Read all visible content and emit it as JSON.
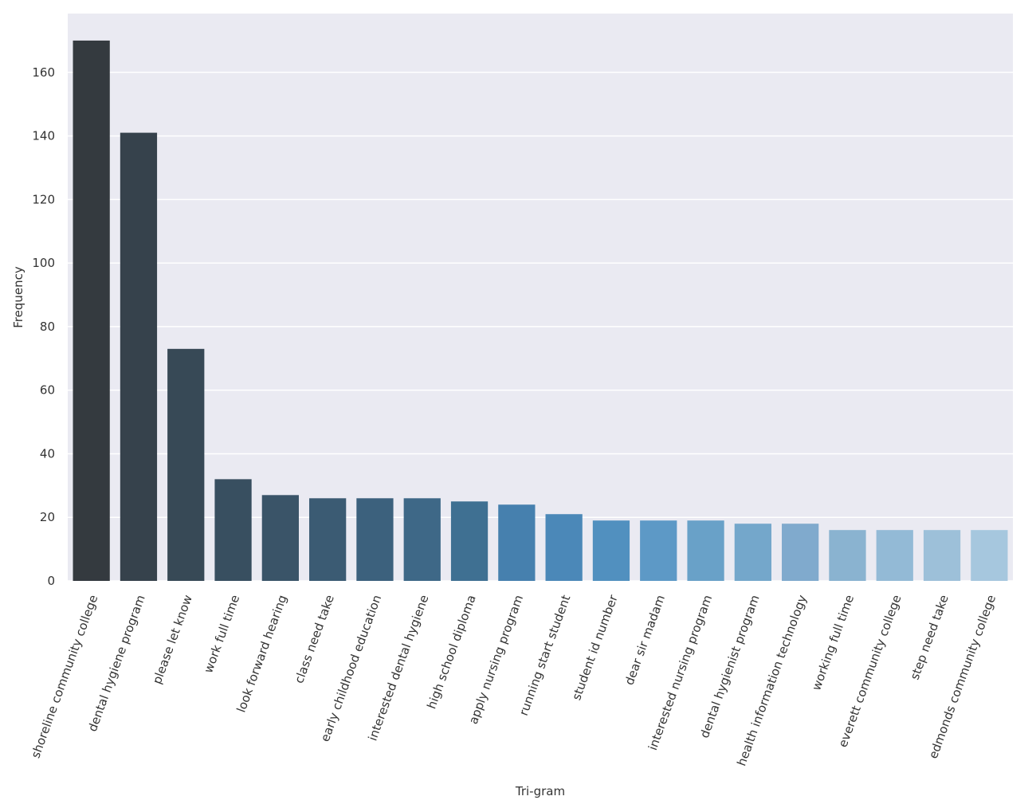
{
  "chart_data": {
    "type": "bar",
    "xlabel": "Tri-gram",
    "ylabel": "Frequency",
    "categories": [
      "shoreline community college",
      "dental hygiene program",
      "please let know",
      "work full time",
      "look forward hearing",
      "class need take",
      "early childhood education",
      "interested dental hygiene",
      "high school diploma",
      "apply nursing program",
      "running start student",
      "student id number",
      "dear sir madam",
      "interested nursing program",
      "dental hygienist program",
      "health information technology",
      "working full time",
      "everett community college",
      "step need take",
      "edmonds community college"
    ],
    "values": [
      170,
      141,
      73,
      32,
      27,
      26,
      26,
      26,
      25,
      24,
      21,
      19,
      19,
      19,
      18,
      18,
      16,
      16,
      16,
      16
    ],
    "colors": [
      "#343a3f",
      "#36424c",
      "#374956",
      "#384f60",
      "#3a5468",
      "#3b5b73",
      "#3c617d",
      "#3e6887",
      "#3f7092",
      "#4680ae",
      "#4b88b8",
      "#5190bf",
      "#5d99c6",
      "#69a1c8",
      "#74a7cb",
      "#80aacd",
      "#8ab3d0",
      "#93bad6",
      "#9dc0d9",
      "#a6c7de"
    ],
    "ylim": [
      0,
      178.5
    ],
    "yticks": [
      0,
      20,
      40,
      60,
      80,
      100,
      120,
      140,
      160
    ],
    "grid": true
  }
}
